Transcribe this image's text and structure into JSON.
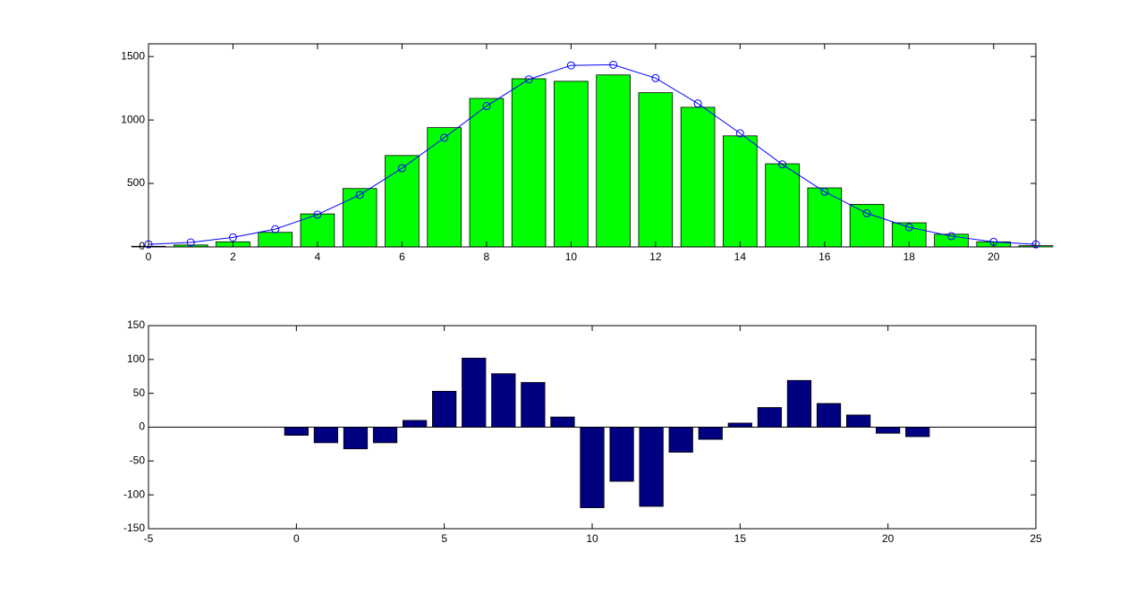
{
  "chart_data": [
    {
      "type": "bar",
      "x": [
        0,
        1,
        2,
        3,
        4,
        5,
        6,
        7,
        8,
        9,
        10,
        11,
        12,
        13,
        14,
        15,
        16,
        17,
        18,
        19,
        20,
        21
      ],
      "series": [
        {
          "type": "bar",
          "color": "#00ff00",
          "values": [
            5,
            15,
            40,
            115,
            260,
            460,
            720,
            940,
            1170,
            1325,
            1305,
            1355,
            1215,
            1100,
            875,
            655,
            465,
            335,
            190,
            100,
            40,
            10
          ]
        },
        {
          "type": "line",
          "color": "#0000ff",
          "marker": "circle",
          "values": [
            20,
            35,
            75,
            140,
            255,
            410,
            620,
            860,
            1110,
            1320,
            1430,
            1435,
            1330,
            1130,
            895,
            650,
            435,
            265,
            155,
            85,
            40,
            20
          ]
        }
      ],
      "xlim": [
        0,
        21
      ],
      "xticks": [
        0,
        2,
        4,
        6,
        8,
        10,
        12,
        14,
        16,
        18,
        20
      ],
      "ylim": [
        0,
        1600
      ],
      "yticks": [
        0,
        500,
        1000,
        1500
      ]
    },
    {
      "type": "bar",
      "x": [
        0,
        1,
        2,
        3,
        4,
        5,
        6,
        7,
        8,
        9,
        10,
        11,
        12,
        13,
        14,
        15,
        16,
        17,
        18,
        19,
        20,
        21
      ],
      "series": [
        {
          "type": "bar",
          "color": "#000080",
          "values": [
            -12,
            -23,
            -32,
            -23,
            10,
            53,
            102,
            79,
            66,
            15,
            -119,
            -80,
            -117,
            -37,
            -18,
            6,
            29,
            69,
            35,
            18,
            -9,
            -14
          ]
        }
      ],
      "xlim": [
        -5,
        25
      ],
      "xticks": [
        -5,
        0,
        5,
        10,
        15,
        20,
        25
      ],
      "ylim": [
        -150,
        150
      ],
      "yticks": [
        -150,
        -100,
        -50,
        0,
        50,
        100,
        150
      ]
    }
  ]
}
